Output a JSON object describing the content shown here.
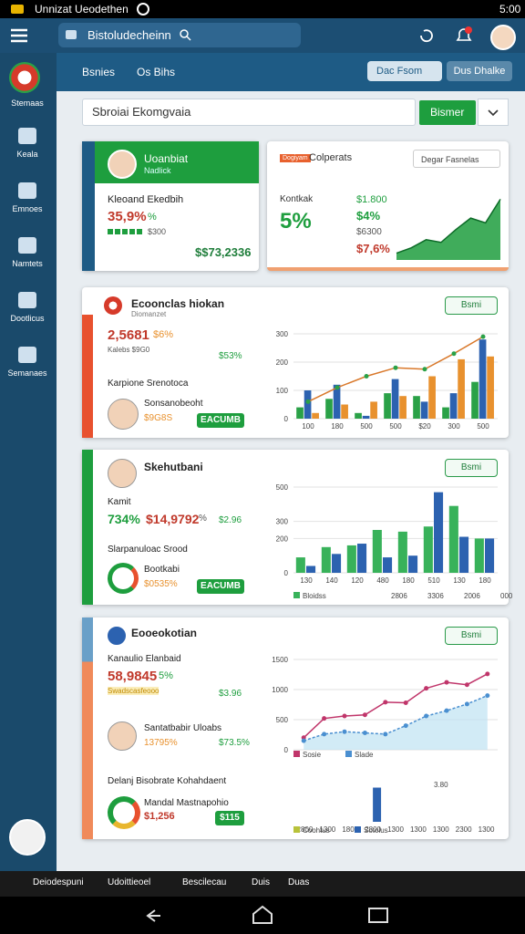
{
  "status_bar": {
    "app": "Unnizat Ueodethen",
    "time": "5:00"
  },
  "app_bar": {
    "search": "Bistoludecheinn"
  },
  "sidebar": {
    "items": [
      "Stemaas",
      "Keala",
      "Emnoes",
      "Namtets",
      "Dootlicus",
      "Semanaes"
    ]
  },
  "tabs": {
    "items": [
      "Bsnies",
      "Os Bihs"
    ],
    "buttons": [
      "Dac Fsom",
      "Dus Dhalke"
    ]
  },
  "search": {
    "placeholder": "Sbroiai Ekomgvaia",
    "button": "Bismer"
  },
  "cards": [
    {
      "title": "Uoanbiat",
      "subtitle": "Nadlick",
      "label": "Kleoand Ekedbih",
      "value": "35,9%",
      "unit": "%",
      "note": "$300",
      "amount": "$$73,2336"
    },
    {
      "badge": "Dogiyam",
      "title": "Colperats",
      "dropdown": "Degar Fasnelas",
      "label": "Kontkak",
      "value": "5%",
      "stats": [
        "$1.800",
        "$4%",
        "$6300",
        "$7,6%"
      ],
      "chart": {
        "type": "area",
        "values": [
          10,
          18,
          30,
          26,
          45,
          62,
          55,
          90
        ],
        "ylim": [
          0,
          100
        ],
        "color": "#1e9e3e"
      }
    },
    {
      "title": "Ecoonclas hiokan",
      "subtitle": "Diomanzet",
      "button": "Bsmi",
      "value": "2,5681",
      "change": "$6%",
      "small": "Kalebs $9G0",
      "metric": "$53%",
      "section": "Karpione Srenotoca",
      "person": "Sonsanobeoht",
      "amount": "$9G8S",
      "action": "EACUMB",
      "chart": {
        "type": "bar",
        "categories": [
          "100",
          "180",
          "500",
          "500",
          "$20",
          "300",
          "500"
        ],
        "ylim": [
          0,
          300
        ],
        "yticks": [
          0,
          100,
          200,
          300
        ],
        "grid": true,
        "series": [
          {
            "color": "#2aa147",
            "values": [
              40,
              70,
              20,
              90,
              80,
              40,
              130
            ]
          },
          {
            "color": "#2c62b0",
            "values": [
              100,
              120,
              10,
              140,
              60,
              90,
              280
            ]
          },
          {
            "color": "#e8912e",
            "values": [
              20,
              50,
              60,
              80,
              150,
              210,
              220
            ]
          },
          {
            "type": "line",
            "color": "#d9782a",
            "values": [
              60,
              110,
              150,
              180,
              175,
              230,
              290
            ]
          }
        ]
      }
    },
    {
      "title": "Skehutbani",
      "button": "Bsmi",
      "label": "Kamit",
      "value": "734%",
      "amount": "$14,9792",
      "unit": "%",
      "metric": "$2.96",
      "section": "Slarpanuloac Srood",
      "donut_title": "Bootkabi",
      "donut_value": "$0535%",
      "action": "EACUMB",
      "chart": {
        "type": "bar",
        "categories": [
          "130",
          "140",
          "120",
          "480",
          "180",
          "510",
          "130",
          "180"
        ],
        "ylim": [
          0,
          500
        ],
        "yticks": [
          0,
          200,
          300,
          500
        ],
        "grid": true,
        "series": [
          {
            "name": "Bloidss",
            "color": "#38b25a",
            "values": [
              90,
              150,
              160,
              250,
              240,
              270,
              390,
              200
            ]
          },
          {
            "color": "#2c62b0",
            "values": [
              40,
              110,
              170,
              90,
              100,
              470,
              210,
              200
            ]
          }
        ],
        "legend_notes": [
          "2806",
          "3306",
          "2006",
          "000"
        ]
      }
    },
    {
      "title": "Eooeokotian",
      "button": "Bsmi",
      "label": "Kanaulio Elanbaid",
      "value": "58,9845",
      "change": "5%",
      "note": "Swadscasfeooo",
      "metric": "$3.96",
      "person": "Santatbabir Uloabs",
      "person_value": "13795%",
      "person_metric": "$73.5%",
      "section": "Delanj Bisobrate Kohahdaent",
      "donut_title": "Mandal Mastnapohio",
      "donut_value": "$1,256",
      "chip": "$115",
      "chart": {
        "type": "line",
        "categories": [
          null,
          null,
          null,
          null,
          null,
          null,
          null,
          null,
          null,
          null
        ],
        "ylim": [
          0,
          1500
        ],
        "yticks": [
          0,
          500,
          1000,
          1500
        ],
        "grid": true,
        "series": [
          {
            "name": "Sosie",
            "color": "#c0356a",
            "values": [
              200,
              520,
              560,
              580,
              790,
              780,
              1020,
              1120,
              1080,
              1260
            ]
          },
          {
            "name": "Slade",
            "color": "#4a8fd0",
            "area": true,
            "values": [
              150,
              260,
              300,
              280,
              260,
              400,
              560,
              650,
              760,
              900
            ]
          }
        ]
      },
      "chart2": {
        "type": "bar",
        "categories": [
          "2800",
          "1300",
          "1800",
          "2800",
          "1300",
          "1300",
          "1300",
          "2300",
          "1300"
        ],
        "ylim": [
          0,
          4
        ],
        "series": [
          {
            "name": "Coohtus",
            "color": "#b8c23a",
            "values": [
              null,
              null,
              null,
              null,
              null,
              null,
              null,
              null,
              null
            ]
          },
          {
            "name": "Sotolus",
            "color": "#2c62b0",
            "values": [
              null,
              null,
              null,
              3,
              null,
              null,
              null,
              null,
              null
            ]
          }
        ],
        "annotation": "3.80"
      }
    }
  ],
  "taskbar": {
    "items": [
      "Deiodespuni",
      "Udoittieoel",
      "Bescilecau",
      "Duis",
      "Duas"
    ]
  }
}
